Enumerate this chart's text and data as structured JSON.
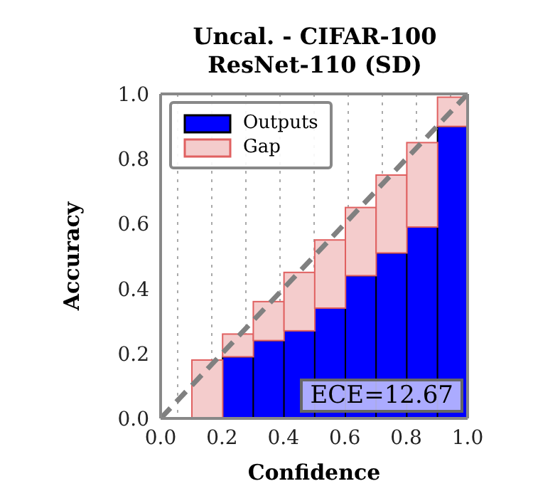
{
  "chart_data": {
    "type": "bar",
    "title": "Uncal. - CIFAR-100\nResNet-110 (SD)",
    "xlabel": "Confidence",
    "ylabel": "Accuracy",
    "x": [
      0.15,
      0.25,
      0.35,
      0.45,
      0.55,
      0.65,
      0.75,
      0.85,
      0.95
    ],
    "stacked": true,
    "series": [
      {
        "name": "Outputs",
        "color": "#0000ff",
        "values": [
          0,
          0.19,
          0.24,
          0.27,
          0.34,
          0.44,
          0.51,
          0.59,
          0.9
        ]
      },
      {
        "name": "Gap",
        "color": "#f4cccc",
        "values": [
          0.18,
          0.07,
          0.12,
          0.18,
          0.21,
          0.21,
          0.24,
          0.26,
          0.09
        ]
      },
      {
        "type": "line",
        "color": "#808080",
        "x": [
          0,
          1
        ],
        "values": [
          0,
          1
        ],
        "line_style": "dashed",
        "marker": "none"
      }
    ],
    "xlim": [
      0,
      1
    ],
    "ylim": [
      0,
      1
    ],
    "xticks": [
      {
        "value": 0,
        "label": "0.0"
      },
      {
        "value": 0.2,
        "label": "0.2"
      },
      {
        "value": 0.4,
        "label": "0.4"
      },
      {
        "value": 0.6,
        "label": "0.6"
      },
      {
        "value": 0.8,
        "label": "0.8"
      },
      {
        "value": 1,
        "label": "1.0"
      }
    ],
    "yticks": [
      {
        "value": 0,
        "label": "0.0"
      },
      {
        "value": 0.2,
        "label": "0.2"
      },
      {
        "value": 0.4,
        "label": "0.4"
      },
      {
        "value": 0.6,
        "label": "0.6"
      },
      {
        "value": 0.8,
        "label": "0.8"
      },
      {
        "value": 1,
        "label": "1.0"
      }
    ],
    "grid": true,
    "legend": "top left",
    "annotations": [
      "ECE=12.67"
    ]
  }
}
